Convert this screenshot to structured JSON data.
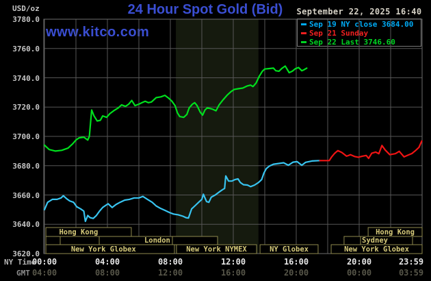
{
  "header": {
    "unit_label": "USD/oz",
    "title": "24 Hour Spot Gold (Bid)",
    "datetime": "September 22, 2025 16:40",
    "watermark": "www.kitco.com",
    "title_color": "#3a4ed2"
  },
  "legend": {
    "items": [
      {
        "label": "Sep 19 NY close 3684.00",
        "color": "#00aaf4"
      },
      {
        "label": "Sep 21 Sunday",
        "color": "#f02020"
      },
      {
        "label": "Sep 22 Last 3746.60",
        "color": "#00d422"
      }
    ]
  },
  "axes": {
    "y_ticks": [
      "3780.0",
      "3760.0",
      "3740.0",
      "3720.0",
      "3700.0",
      "3680.0",
      "3660.0",
      "3640.0",
      "3620.0"
    ],
    "ny": {
      "caption": "NY Time",
      "ticks": [
        {
          "hour": 0,
          "label": "00:00"
        },
        {
          "hour": 4,
          "label": "04:00"
        },
        {
          "hour": 8,
          "label": "08:00"
        },
        {
          "hour": 12,
          "label": "12:00"
        },
        {
          "hour": 16,
          "label": "16:00"
        },
        {
          "hour": 20,
          "label": "20:00"
        },
        {
          "hour": 23.983,
          "label": "23:59"
        }
      ]
    },
    "gmt": {
      "caption": "GMT",
      "ticks": [
        {
          "hour": 0,
          "label": "04:00"
        },
        {
          "hour": 4,
          "label": "08:00"
        },
        {
          "hour": 8,
          "label": "12:00"
        },
        {
          "hour": 12,
          "label": "16:00"
        },
        {
          "hour": 16,
          "label": "20:00"
        },
        {
          "hour": 20,
          "label": "00:00"
        },
        {
          "hour": 23.983,
          "label": "03:59"
        }
      ]
    }
  },
  "sessions": {
    "text_color": "#d6ca7a",
    "border_color": "#8f8a4e",
    "rows": [
      {
        "boxes": [
          {
            "start": 0.09,
            "end": 5.52,
            "label": "Hong Kong",
            "label_hour": 2.17
          },
          {
            "start": 20.57,
            "end": 24,
            "label": "Hong Kong"
          }
        ]
      },
      {
        "boxes": [
          {
            "start": 0.09,
            "end": 1.0
          },
          {
            "start": 1.0,
            "end": 3.48
          },
          {
            "start": 3.48,
            "end": 8.13,
            "label": "London",
            "label_hour": 7.17
          },
          {
            "start": 8.13,
            "end": 11.0
          },
          {
            "start": 19.04,
            "end": 20.09
          },
          {
            "start": 20.09,
            "end": 23.39,
            "label": "Sydney",
            "label_hour": 21.0
          }
        ]
      },
      {
        "boxes": [
          {
            "start": 0.09,
            "end": 8.26,
            "label": "New York Globex",
            "label_hour": 3.75
          },
          {
            "start": 8.39,
            "end": 13.48,
            "label": "New York NYMEX"
          },
          {
            "start": 13.7,
            "end": 17.39,
            "label": "NY Globex"
          },
          {
            "start": 18.22,
            "end": 24,
            "label": "New York Globex"
          }
        ]
      }
    ]
  },
  "chart_data": {
    "type": "line",
    "title": "24 Hour Spot Gold (Bid)",
    "ylabel": "USD/oz",
    "xlabel": "NY Time (hours)",
    "x_range_hours": [
      0,
      24
    ],
    "y_axis": {
      "min": 3620,
      "max": 3780,
      "tick_step": 20
    },
    "grid": true,
    "background": "#000000",
    "grid_color": "#565656",
    "shaded_band": {
      "start_hour": 8.35,
      "end_hour": 13.6,
      "color": "#151a0e"
    },
    "series": [
      {
        "name": "Sep 19 NY close",
        "close_value": 3684.0,
        "color": "#38c4f0",
        "points": [
          [
            0,
            3650
          ],
          [
            0.2,
            3655
          ],
          [
            0.5,
            3657
          ],
          [
            0.8,
            3657
          ],
          [
            1.05,
            3658
          ],
          [
            1.2,
            3659.5
          ],
          [
            1.4,
            3657.5
          ],
          [
            1.6,
            3656
          ],
          [
            1.85,
            3655
          ],
          [
            2.05,
            3652
          ],
          [
            2.3,
            3650.5
          ],
          [
            2.5,
            3649
          ],
          [
            2.6,
            3642
          ],
          [
            2.75,
            3646
          ],
          [
            2.9,
            3644.5
          ],
          [
            3.1,
            3644
          ],
          [
            3.3,
            3646
          ],
          [
            3.5,
            3649
          ],
          [
            3.7,
            3651.5
          ],
          [
            3.9,
            3653
          ],
          [
            4.05,
            3654
          ],
          [
            4.3,
            3651.5
          ],
          [
            4.55,
            3653.5
          ],
          [
            4.8,
            3655
          ],
          [
            5.1,
            3656.5
          ],
          [
            5.4,
            3657
          ],
          [
            5.7,
            3658
          ],
          [
            6.0,
            3658
          ],
          [
            6.25,
            3659
          ],
          [
            6.55,
            3657
          ],
          [
            6.85,
            3655
          ],
          [
            7.1,
            3652.5
          ],
          [
            7.35,
            3651
          ],
          [
            7.65,
            3649.5
          ],
          [
            7.95,
            3648
          ],
          [
            8.2,
            3647
          ],
          [
            8.5,
            3646.5
          ],
          [
            8.8,
            3645.5
          ],
          [
            9.0,
            3644.5
          ],
          [
            9.15,
            3644.3
          ],
          [
            9.35,
            3650.5
          ],
          [
            9.6,
            3653
          ],
          [
            9.85,
            3655.5
          ],
          [
            10.0,
            3657
          ],
          [
            10.1,
            3660.5
          ],
          [
            10.3,
            3655.5
          ],
          [
            10.45,
            3655
          ],
          [
            10.6,
            3658.5
          ],
          [
            10.85,
            3660
          ],
          [
            11.1,
            3662
          ],
          [
            11.3,
            3663.5
          ],
          [
            11.45,
            3664.5
          ],
          [
            11.52,
            3673
          ],
          [
            11.7,
            3669.5
          ],
          [
            11.9,
            3669.5
          ],
          [
            12.1,
            3670.5
          ],
          [
            12.3,
            3671
          ],
          [
            12.45,
            3668.5
          ],
          [
            12.65,
            3667
          ],
          [
            12.9,
            3666.8
          ],
          [
            13.1,
            3665.7
          ],
          [
            13.35,
            3666.8
          ],
          [
            13.6,
            3668.5
          ],
          [
            13.8,
            3670.5
          ],
          [
            13.95,
            3675
          ],
          [
            14.1,
            3678
          ],
          [
            14.3,
            3679.8
          ],
          [
            14.55,
            3681
          ],
          [
            14.9,
            3681.5
          ],
          [
            15.2,
            3682
          ],
          [
            15.5,
            3680.3
          ],
          [
            15.8,
            3682.4
          ],
          [
            16.05,
            3682.8
          ],
          [
            16.35,
            3680.3
          ],
          [
            16.6,
            3682.3
          ],
          [
            17.0,
            3683.2
          ],
          [
            17.5,
            3683.5
          ]
        ]
      },
      {
        "name": "Sep 21 Sunday",
        "color": "#f01414",
        "points": [
          [
            17.5,
            3683.5
          ],
          [
            18.1,
            3683.5
          ],
          [
            18.25,
            3686
          ],
          [
            18.45,
            3688.5
          ],
          [
            18.65,
            3690.3
          ],
          [
            18.9,
            3689
          ],
          [
            19.2,
            3686.5
          ],
          [
            19.45,
            3687.5
          ],
          [
            19.7,
            3686.3
          ],
          [
            19.95,
            3685.8
          ],
          [
            20.2,
            3686.5
          ],
          [
            20.45,
            3687
          ],
          [
            20.6,
            3685
          ],
          [
            20.8,
            3688.5
          ],
          [
            21.05,
            3689.3
          ],
          [
            21.25,
            3688.2
          ],
          [
            21.45,
            3693.8
          ],
          [
            21.65,
            3690.8
          ],
          [
            21.95,
            3687.5
          ],
          [
            22.3,
            3688.2
          ],
          [
            22.55,
            3689.8
          ],
          [
            22.85,
            3686
          ],
          [
            23.1,
            3687.2
          ],
          [
            23.35,
            3688.3
          ],
          [
            23.6,
            3690.5
          ],
          [
            23.8,
            3692.5
          ],
          [
            23.98,
            3696.8
          ]
        ]
      },
      {
        "name": "Sep 22 Last",
        "last_value": 3746.6,
        "color": "#00e01e",
        "points": [
          [
            0,
            3694
          ],
          [
            0.3,
            3691
          ],
          [
            0.7,
            3690
          ],
          [
            1.1,
            3690.5
          ],
          [
            1.5,
            3692
          ],
          [
            1.8,
            3695
          ],
          [
            2.0,
            3697.5
          ],
          [
            2.2,
            3699
          ],
          [
            2.5,
            3699.5
          ],
          [
            2.75,
            3697.5
          ],
          [
            2.85,
            3700
          ],
          [
            3.0,
            3718
          ],
          [
            3.15,
            3714
          ],
          [
            3.35,
            3710.5
          ],
          [
            3.55,
            3711
          ],
          [
            3.7,
            3714
          ],
          [
            3.95,
            3713
          ],
          [
            4.15,
            3715.5
          ],
          [
            4.4,
            3717.5
          ],
          [
            4.7,
            3719.5
          ],
          [
            4.9,
            3721.5
          ],
          [
            5.15,
            3720.5
          ],
          [
            5.35,
            3722
          ],
          [
            5.55,
            3724.5
          ],
          [
            5.75,
            3721
          ],
          [
            6.0,
            3722
          ],
          [
            6.2,
            3723
          ],
          [
            6.4,
            3724
          ],
          [
            6.6,
            3723
          ],
          [
            6.8,
            3723.5
          ],
          [
            7.1,
            3726.5
          ],
          [
            7.4,
            3727
          ],
          [
            7.65,
            3728
          ],
          [
            7.9,
            3726
          ],
          [
            8.1,
            3724
          ],
          [
            8.3,
            3721
          ],
          [
            8.45,
            3716
          ],
          [
            8.6,
            3713.5
          ],
          [
            8.85,
            3713
          ],
          [
            9.05,
            3715
          ],
          [
            9.2,
            3719.5
          ],
          [
            9.4,
            3722
          ],
          [
            9.55,
            3723
          ],
          [
            9.7,
            3721
          ],
          [
            9.9,
            3716.5
          ],
          [
            10.05,
            3714.5
          ],
          [
            10.2,
            3718
          ],
          [
            10.35,
            3719.5
          ],
          [
            10.55,
            3719
          ],
          [
            10.7,
            3718.5
          ],
          [
            10.9,
            3717.5
          ],
          [
            11.1,
            3721.5
          ],
          [
            11.35,
            3725
          ],
          [
            11.6,
            3728
          ],
          [
            11.85,
            3730.5
          ],
          [
            12.05,
            3732
          ],
          [
            12.3,
            3732.5
          ],
          [
            12.6,
            3733
          ],
          [
            12.9,
            3734.5
          ],
          [
            13.1,
            3735
          ],
          [
            13.25,
            3734
          ],
          [
            13.45,
            3736.5
          ],
          [
            13.65,
            3741
          ],
          [
            13.85,
            3744.5
          ],
          [
            14.0,
            3746
          ],
          [
            14.3,
            3746.3
          ],
          [
            14.55,
            3746.6
          ],
          [
            14.7,
            3744.8
          ],
          [
            14.9,
            3744.5
          ],
          [
            15.1,
            3746.5
          ],
          [
            15.3,
            3748
          ],
          [
            15.55,
            3743.5
          ],
          [
            15.75,
            3744.5
          ],
          [
            15.95,
            3746.2
          ],
          [
            16.15,
            3747
          ],
          [
            16.35,
            3744.8
          ],
          [
            16.5,
            3745.5
          ],
          [
            16.67,
            3746.6
          ]
        ]
      }
    ]
  }
}
